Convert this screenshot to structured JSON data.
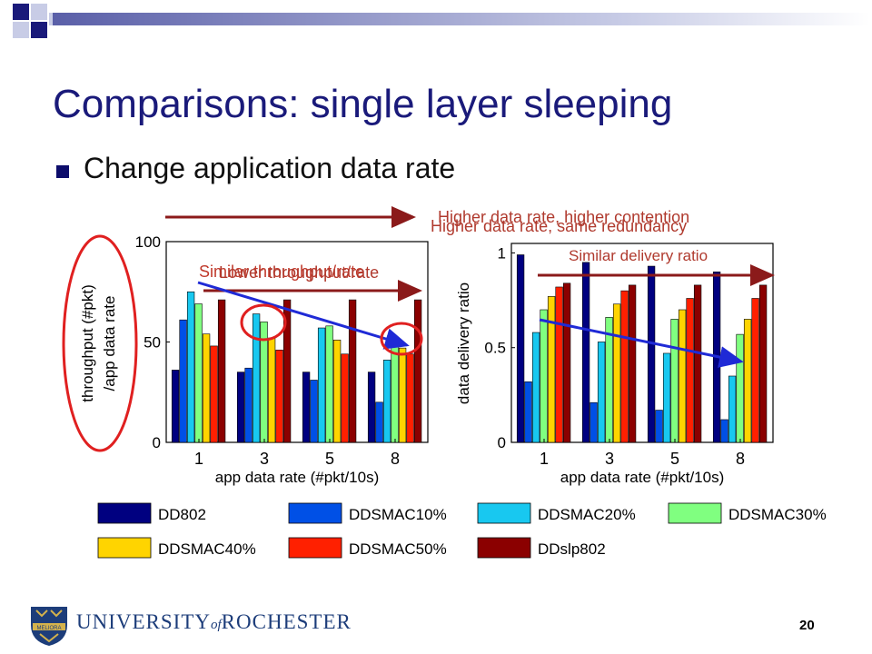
{
  "slide": {
    "title": "Comparisons: single layer sleeping",
    "bullet": "Change application data rate",
    "page_number": "20",
    "university": {
      "part1": "UNIVERSITY",
      "of": "of",
      "part2": "ROCHESTER",
      "seal_text": "MELIORA"
    },
    "annotations": {
      "top_a": "Higher data rate, higher contention",
      "top_b": "Higher data rate, same redundancy",
      "left_a": "Similar throughput/rate",
      "left_b": "Lower throughput/rate",
      "right": "Similar delivery ratio"
    },
    "colors": {
      "title": "#1a1a7a",
      "annotation": "#b03a2e",
      "arrow_dark_red": "#8b1a1a",
      "blue_arrow": "#1f2ad6",
      "circle": "#e02020"
    }
  },
  "chart_data": [
    {
      "type": "bar",
      "categories": [
        "1",
        "3",
        "5",
        "8"
      ],
      "xlabel": "app data rate (#pkt/10s)",
      "ylabel": "throughput (#pkt) /app data rate",
      "ylim": [
        0,
        100
      ],
      "yticks": [
        "0",
        "50",
        "100"
      ],
      "grid": false,
      "series": [
        {
          "name": "DD802",
          "color": "#000080",
          "values": [
            36,
            35,
            35,
            35
          ]
        },
        {
          "name": "DDSMAC10%",
          "color": "#0050e6",
          "values": [
            61,
            37,
            31,
            20
          ]
        },
        {
          "name": "DDSMAC20%",
          "color": "#18c8f0",
          "values": [
            75,
            64,
            57,
            41
          ]
        },
        {
          "name": "DDSMAC30%",
          "color": "#80ff80",
          "values": [
            69,
            60,
            58,
            51
          ]
        },
        {
          "name": "DDSMAC40%",
          "color": "#ffd400",
          "values": [
            54,
            52,
            51,
            47
          ]
        },
        {
          "name": "DDSMAC50%",
          "color": "#ff2000",
          "values": [
            48,
            46,
            44,
            44
          ]
        },
        {
          "name": "DDslp802",
          "color": "#8b0000",
          "values": [
            71,
            71,
            71,
            71
          ]
        }
      ]
    },
    {
      "type": "bar",
      "categories": [
        "1",
        "3",
        "5",
        "8"
      ],
      "xlabel": "app data rate (#pkt/10s)",
      "ylabel": "data delivery ratio",
      "ylim": [
        0,
        1.05
      ],
      "yticks": [
        "0",
        "0.5",
        "1"
      ],
      "grid": false,
      "series": [
        {
          "name": "DD802",
          "color": "#000080",
          "values": [
            0.99,
            0.95,
            0.93,
            0.9
          ]
        },
        {
          "name": "DDSMAC10%",
          "color": "#0050e6",
          "values": [
            0.32,
            0.21,
            0.17,
            0.12
          ]
        },
        {
          "name": "DDSMAC20%",
          "color": "#18c8f0",
          "values": [
            0.58,
            0.53,
            0.47,
            0.35
          ]
        },
        {
          "name": "DDSMAC30%",
          "color": "#80ff80",
          "values": [
            0.7,
            0.66,
            0.65,
            0.57
          ]
        },
        {
          "name": "DDSMAC40%",
          "color": "#ffd400",
          "values": [
            0.77,
            0.73,
            0.7,
            0.65
          ]
        },
        {
          "name": "DDSMAC50%",
          "color": "#ff2000",
          "values": [
            0.82,
            0.8,
            0.76,
            0.76
          ]
        },
        {
          "name": "DDslp802",
          "color": "#8b0000",
          "values": [
            0.84,
            0.83,
            0.83,
            0.83
          ]
        }
      ]
    }
  ],
  "legend": [
    {
      "label": "DD802",
      "color": "#000080"
    },
    {
      "label": "DDSMAC10%",
      "color": "#0050e6"
    },
    {
      "label": "DDSMAC20%",
      "color": "#18c8f0"
    },
    {
      "label": "DDSMAC30%",
      "color": "#80ff80"
    },
    {
      "label": "DDSMAC40%",
      "color": "#ffd400"
    },
    {
      "label": "DDSMAC50%",
      "color": "#ff2000"
    },
    {
      "label": "DDslp802",
      "color": "#8b0000"
    }
  ]
}
